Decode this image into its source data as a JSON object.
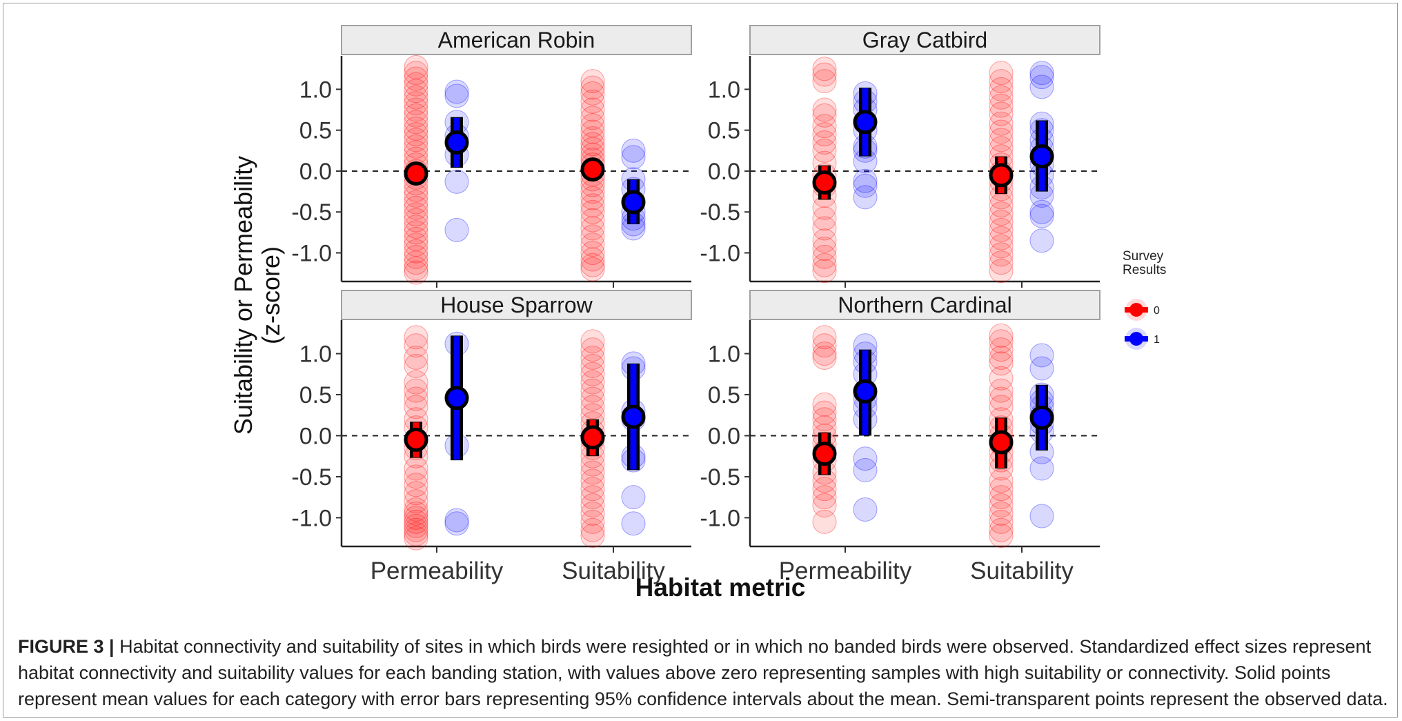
{
  "colors": {
    "group0": "#ff0000",
    "group1": "#0000ff",
    "strip_bg": "#ececec",
    "strip_border": "#a0a0a0"
  },
  "chart_data": {
    "type": "scatter",
    "facet_layout": "2x2",
    "xlabel": "Habitat metric",
    "ylabel_lines": [
      "Suitability or Permeability",
      "(z-score)"
    ],
    "categories": [
      "Permeability",
      "Suitability"
    ],
    "ylim": [
      -1.35,
      1.4
    ],
    "yticks": [
      1.0,
      0.5,
      0.0,
      -0.5,
      -1.0
    ],
    "ytick_labels": [
      "1.0",
      "0.5",
      "0.0",
      "-0.5",
      "-1.0"
    ],
    "reference_line": {
      "y": 0,
      "style": "dashed"
    },
    "grid": false,
    "legend": {
      "title_lines": [
        "Survey",
        "Results"
      ],
      "placement": "right",
      "entries": [
        {
          "label": "0",
          "color": "#ff0000"
        },
        {
          "label": "1",
          "color": "#0000ff"
        }
      ]
    },
    "panels": [
      {
        "title": "American Robin",
        "groups": [
          {
            "category": "Permeability",
            "result": "0",
            "mean": -0.03,
            "ci": [
              -0.14,
              0.09
            ],
            "points": [
              1.27,
              1.2,
              1.13,
              1.06,
              0.98,
              0.9,
              0.83,
              0.75,
              0.68,
              0.6,
              0.52,
              0.45,
              0.38,
              0.3,
              0.23,
              0.15,
              0.08,
              0.0,
              -0.08,
              -0.15,
              -0.23,
              -0.3,
              -0.38,
              -0.45,
              -0.53,
              -0.6,
              -0.68,
              -0.75,
              -0.83,
              -0.9,
              -0.98,
              -1.05,
              -1.12,
              -1.19,
              -1.24
            ]
          },
          {
            "category": "Permeability",
            "result": "1",
            "mean": 0.35,
            "ci": [
              0.04,
              0.66
            ],
            "points": [
              0.97,
              0.92,
              0.6,
              0.43,
              0.2,
              -0.13,
              -0.72
            ]
          },
          {
            "category": "Suitability",
            "result": "0",
            "mean": 0.02,
            "ci": [
              -0.1,
              0.14
            ],
            "points": [
              1.1,
              1.02,
              0.95,
              0.85,
              0.75,
              0.65,
              0.56,
              0.48,
              0.4,
              0.33,
              0.27,
              0.2,
              0.14,
              0.08,
              0.02,
              -0.04,
              -0.1,
              -0.17,
              -0.25,
              -0.33,
              -0.42,
              -0.5,
              -0.6,
              -0.7,
              -0.8,
              -0.9,
              -1.0,
              -1.08,
              -1.15,
              -1.2
            ]
          },
          {
            "category": "Suitability",
            "result": "1",
            "mean": -0.38,
            "ci": [
              -0.65,
              -0.1
            ],
            "points": [
              0.25,
              0.17,
              -0.1,
              -0.22,
              -0.5,
              -0.58,
              -0.65,
              -0.7
            ]
          }
        ]
      },
      {
        "title": "Gray Catbird",
        "groups": [
          {
            "category": "Permeability",
            "result": "0",
            "mean": -0.14,
            "ci": [
              -0.35,
              0.07
            ],
            "points": [
              1.25,
              1.18,
              1.1,
              0.75,
              0.68,
              0.55,
              0.45,
              0.35,
              0.25,
              0.1,
              -0.05,
              -0.18,
              -0.3,
              -0.45,
              -0.58,
              -0.7,
              -0.85,
              -0.95,
              -1.05,
              -1.15,
              -1.22
            ]
          },
          {
            "category": "Permeability",
            "result": "1",
            "mean": 0.6,
            "ci": [
              0.18,
              1.02
            ],
            "points": [
              0.95,
              0.85,
              0.75,
              0.6,
              0.5,
              0.3,
              0.25,
              0.12,
              -0.12,
              -0.18,
              -0.32
            ]
          },
          {
            "category": "Suitability",
            "result": "0",
            "mean": -0.05,
            "ci": [
              -0.28,
              0.18
            ],
            "points": [
              1.2,
              1.1,
              1.0,
              0.9,
              0.8,
              0.7,
              0.58,
              0.48,
              0.38,
              0.28,
              0.18,
              0.08,
              -0.02,
              -0.12,
              -0.22,
              -0.32,
              -0.42,
              -0.52,
              -0.62,
              -0.72,
              -0.82,
              -0.92,
              -1.02,
              -1.12,
              -1.22
            ]
          },
          {
            "category": "Suitability",
            "result": "1",
            "mean": 0.18,
            "ci": [
              -0.25,
              0.62
            ],
            "points": [
              1.2,
              1.15,
              1.03,
              0.58,
              0.5,
              0.38,
              0.28,
              0.18,
              0.08,
              -0.05,
              -0.2,
              -0.3,
              -0.5,
              -0.55,
              -0.85
            ]
          }
        ]
      },
      {
        "title": "House Sparrow",
        "groups": [
          {
            "category": "Permeability",
            "result": "0",
            "mean": -0.05,
            "ci": [
              -0.27,
              0.17
            ],
            "points": [
              1.2,
              1.1,
              0.95,
              0.85,
              0.65,
              0.55,
              0.45,
              0.35,
              0.2,
              0.1,
              -0.05,
              -0.15,
              -0.25,
              -0.4,
              -0.5,
              -0.6,
              -0.7,
              -0.8,
              -0.9,
              -0.95,
              -1.0,
              -1.05,
              -1.1,
              -1.15,
              -1.2,
              -1.25
            ]
          },
          {
            "category": "Permeability",
            "result": "1",
            "mean": 0.46,
            "ci": [
              -0.3,
              1.22
            ],
            "points": [
              1.12,
              -0.12,
              -1.03,
              -1.07
            ]
          },
          {
            "category": "Suitability",
            "result": "0",
            "mean": -0.02,
            "ci": [
              -0.25,
              0.2
            ],
            "points": [
              1.15,
              1.05,
              0.95,
              0.85,
              0.75,
              0.65,
              0.55,
              0.45,
              0.35,
              0.25,
              0.15,
              0.05,
              -0.05,
              -0.15,
              -0.25,
              -0.35,
              -0.45,
              -0.55,
              -0.65,
              -0.75,
              -0.85,
              -0.95,
              -1.05,
              -1.15,
              -1.22
            ]
          },
          {
            "category": "Suitability",
            "result": "1",
            "mean": 0.23,
            "ci": [
              -0.42,
              0.88
            ],
            "points": [
              0.88,
              0.82,
              0.3,
              0.2,
              -0.25,
              -0.3,
              -0.75,
              -1.07
            ]
          }
        ]
      },
      {
        "title": "Northern Cardinal",
        "groups": [
          {
            "category": "Permeability",
            "result": "0",
            "mean": -0.22,
            "ci": [
              -0.48,
              0.04
            ],
            "points": [
              1.2,
              1.1,
              1.0,
              0.95,
              0.38,
              0.28,
              0.2,
              0.1,
              0.0,
              -0.1,
              -0.2,
              -0.3,
              -0.45,
              -0.55,
              -0.65,
              -0.75,
              -0.85,
              -1.05
            ]
          },
          {
            "category": "Permeability",
            "result": "1",
            "mean": 0.54,
            "ci": [
              0.0,
              1.05
            ],
            "points": [
              1.1,
              1.0,
              0.9,
              0.75,
              0.45,
              0.35,
              0.2,
              -0.28,
              -0.42,
              -0.9
            ]
          },
          {
            "category": "Suitability",
            "result": "0",
            "mean": -0.08,
            "ci": [
              -0.4,
              0.22
            ],
            "points": [
              1.22,
              1.15,
              1.05,
              0.95,
              0.88,
              0.7,
              0.55,
              0.45,
              0.35,
              0.2,
              0.1,
              0.0,
              -0.1,
              -0.2,
              -0.3,
              -0.4,
              -0.55,
              -0.65,
              -0.75,
              -0.85,
              -0.95,
              -1.05,
              -1.15,
              -1.22
            ]
          },
          {
            "category": "Suitability",
            "result": "1",
            "mean": 0.22,
            "ci": [
              -0.18,
              0.62
            ],
            "points": [
              0.98,
              0.82,
              0.5,
              0.42,
              0.35,
              0.25,
              0.15,
              0.05,
              -0.2,
              -0.4,
              -0.98
            ]
          }
        ]
      }
    ]
  },
  "caption": {
    "label": "FIGURE 3 |",
    "text": "Habitat connectivity and suitability of sites in which birds were resighted or in which no banded birds were observed.  Standardized effect sizes represent habitat connectivity and suitability values for each banding station, with values above zero representing samples with high suitability or connectivity. Solid points represent mean values for each category with error bars representing 95% confidence intervals about the mean. Semi-transparent points represent the observed data."
  }
}
